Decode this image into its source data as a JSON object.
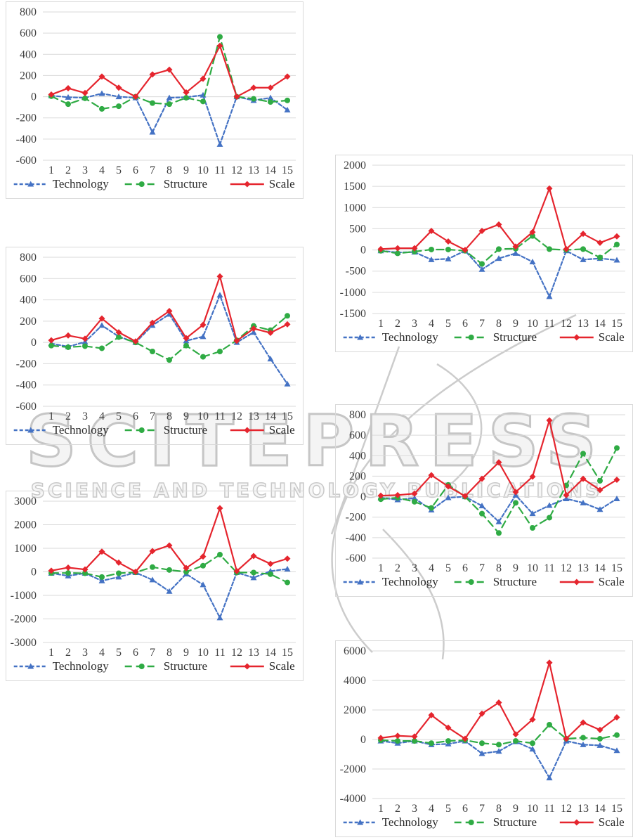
{
  "watermark": {
    "title": "SCITEPRESS",
    "subtitle": "SCIENCE AND TECHNOLOGY PUBLICATIONS",
    "outline_color": "#c6c6c6"
  },
  "palette": {
    "technology": "#4472C4",
    "structure": "#2FAB44",
    "scale": "#E5252E",
    "gridline": "#d9d9d9",
    "axis_text": "#404040",
    "panel_border": "#d9d9d9"
  },
  "chart_data": [
    {
      "type": "line",
      "position": "top-left",
      "categories": [
        "1",
        "2",
        "3",
        "4",
        "5",
        "6",
        "7",
        "8",
        "9",
        "10",
        "11",
        "12",
        "13",
        "14",
        "15"
      ],
      "ylim": [
        -600,
        800
      ],
      "ystep": 200,
      "grid": true,
      "legend_position": "bottom",
      "series": [
        {
          "name": "Technology",
          "color": "#4472C4",
          "marker": "triangle",
          "line": "dashed",
          "values": [
            10,
            -5,
            -10,
            30,
            0,
            -10,
            -335,
            -10,
            -5,
            15,
            -450,
            0,
            -35,
            -10,
            -125
          ]
        },
        {
          "name": "Structure",
          "color": "#2FAB44",
          "marker": "circle",
          "line": "dashed-long",
          "values": [
            5,
            -70,
            -15,
            -115,
            -90,
            0,
            -60,
            -70,
            -10,
            -45,
            565,
            0,
            -20,
            -50,
            -35
          ]
        },
        {
          "name": "Scale",
          "color": "#E5252E",
          "marker": "diamond",
          "line": "solid",
          "values": [
            20,
            80,
            35,
            190,
            85,
            0,
            210,
            255,
            40,
            170,
            480,
            0,
            85,
            85,
            190
          ]
        }
      ]
    },
    {
      "type": "line",
      "position": "top-right",
      "categories": [
        "1",
        "2",
        "3",
        "4",
        "5",
        "6",
        "7",
        "8",
        "9",
        "10",
        "11",
        "12",
        "13",
        "14",
        "15"
      ],
      "ylim": [
        -1500,
        2000
      ],
      "ystep": 500,
      "grid": true,
      "legend_position": "bottom",
      "series": [
        {
          "name": "Technology",
          "color": "#4472C4",
          "marker": "triangle",
          "line": "dashed",
          "values": [
            -20,
            -60,
            -50,
            -230,
            -210,
            -20,
            -460,
            -200,
            -80,
            -280,
            -1100,
            -20,
            -230,
            -200,
            -240
          ]
        },
        {
          "name": "Structure",
          "color": "#2FAB44",
          "marker": "circle",
          "line": "dashed-long",
          "values": [
            -20,
            -80,
            -40,
            10,
            10,
            -20,
            -330,
            20,
            30,
            330,
            20,
            0,
            20,
            -180,
            130
          ]
        },
        {
          "name": "Scale",
          "color": "#E5252E",
          "marker": "diamond",
          "line": "solid",
          "values": [
            20,
            40,
            40,
            450,
            200,
            0,
            450,
            600,
            80,
            420,
            1450,
            20,
            380,
            170,
            320
          ]
        }
      ]
    },
    {
      "type": "line",
      "position": "middle-left",
      "categories": [
        "1",
        "2",
        "3",
        "4",
        "5",
        "6",
        "7",
        "8",
        "9",
        "10",
        "11",
        "12",
        "13",
        "14",
        "15"
      ],
      "ylim": [
        -600,
        800
      ],
      "ystep": 200,
      "grid": true,
      "legend_position": "bottom",
      "series": [
        {
          "name": "Technology",
          "color": "#4472C4",
          "marker": "triangle",
          "line": "dashed",
          "values": [
            -10,
            -40,
            5,
            160,
            55,
            0,
            160,
            265,
            15,
            55,
            445,
            0,
            95,
            -155,
            -390
          ]
        },
        {
          "name": "Structure",
          "color": "#2FAB44",
          "marker": "circle",
          "line": "dashed-long",
          "values": [
            -30,
            -45,
            -35,
            -55,
            50,
            0,
            -85,
            -165,
            -30,
            -135,
            -85,
            20,
            155,
            115,
            250
          ]
        },
        {
          "name": "Scale",
          "color": "#E5252E",
          "marker": "diamond",
          "line": "solid",
          "values": [
            20,
            65,
            35,
            225,
            95,
            10,
            185,
            295,
            40,
            165,
            620,
            15,
            130,
            90,
            170
          ]
        }
      ]
    },
    {
      "type": "line",
      "position": "middle-right",
      "categories": [
        "1",
        "2",
        "3",
        "4",
        "5",
        "6",
        "7",
        "8",
        "9",
        "10",
        "11",
        "12",
        "13",
        "14",
        "15"
      ],
      "ylim": [
        -600,
        800
      ],
      "ystep": 200,
      "grid": true,
      "legend_position": "bottom",
      "series": [
        {
          "name": "Technology",
          "color": "#4472C4",
          "marker": "triangle",
          "line": "dashed",
          "values": [
            -10,
            -30,
            -15,
            -130,
            -10,
            0,
            -90,
            -245,
            15,
            -165,
            -85,
            -20,
            -60,
            -125,
            -20
          ]
        },
        {
          "name": "Structure",
          "color": "#2FAB44",
          "marker": "circle",
          "line": "dashed-long",
          "values": [
            -25,
            -10,
            -50,
            -110,
            115,
            0,
            -165,
            -355,
            -60,
            -305,
            -205,
            110,
            420,
            155,
            475
          ]
        },
        {
          "name": "Scale",
          "color": "#E5252E",
          "marker": "diamond",
          "line": "solid",
          "values": [
            10,
            15,
            30,
            210,
            100,
            5,
            175,
            335,
            45,
            195,
            745,
            15,
            175,
            65,
            165
          ]
        }
      ]
    },
    {
      "type": "line",
      "position": "bottom-left",
      "categories": [
        "1",
        "2",
        "3",
        "4",
        "5",
        "6",
        "7",
        "8",
        "9",
        "10",
        "11",
        "12",
        "13",
        "14",
        "15"
      ],
      "ylim": [
        -3000,
        3000
      ],
      "ystep": 1000,
      "grid": true,
      "legend_position": "bottom",
      "series": [
        {
          "name": "Technology",
          "color": "#4472C4",
          "marker": "triangle",
          "line": "dashed",
          "values": [
            -60,
            -170,
            -60,
            -380,
            -220,
            -30,
            -340,
            -830,
            -90,
            -550,
            -1950,
            -30,
            -250,
            30,
            120
          ]
        },
        {
          "name": "Structure",
          "color": "#2FAB44",
          "marker": "circle",
          "line": "dashed-long",
          "values": [
            -50,
            -50,
            -60,
            -220,
            -60,
            -20,
            200,
            80,
            0,
            260,
            730,
            -30,
            -30,
            -100,
            -450
          ]
        },
        {
          "name": "Scale",
          "color": "#E5252E",
          "marker": "diamond",
          "line": "solid",
          "values": [
            50,
            180,
            100,
            860,
            390,
            0,
            880,
            1120,
            160,
            650,
            2700,
            30,
            670,
            340,
            560
          ]
        }
      ]
    },
    {
      "type": "line",
      "position": "bottom-right",
      "categories": [
        "1",
        "2",
        "3",
        "4",
        "5",
        "6",
        "7",
        "8",
        "9",
        "10",
        "11",
        "12",
        "13",
        "14",
        "15"
      ],
      "ylim": [
        -4000,
        6000
      ],
      "ystep": 2000,
      "grid": true,
      "legend_position": "bottom",
      "series": [
        {
          "name": "Technology",
          "color": "#4472C4",
          "marker": "triangle",
          "line": "dashed",
          "values": [
            -100,
            -250,
            -100,
            -350,
            -300,
            -100,
            -950,
            -800,
            -150,
            -650,
            -2600,
            -100,
            -350,
            -400,
            -750
          ]
        },
        {
          "name": "Structure",
          "color": "#2FAB44",
          "marker": "circle",
          "line": "dashed-long",
          "values": [
            -50,
            -100,
            -100,
            -250,
            -100,
            -50,
            -250,
            -350,
            -100,
            -250,
            1000,
            50,
            120,
            50,
            300
          ]
        },
        {
          "name": "Scale",
          "color": "#E5252E",
          "marker": "diamond",
          "line": "solid",
          "values": [
            100,
            250,
            200,
            1650,
            800,
            50,
            1750,
            2500,
            350,
            1350,
            5200,
            50,
            1150,
            650,
            1500
          ]
        }
      ]
    }
  ]
}
